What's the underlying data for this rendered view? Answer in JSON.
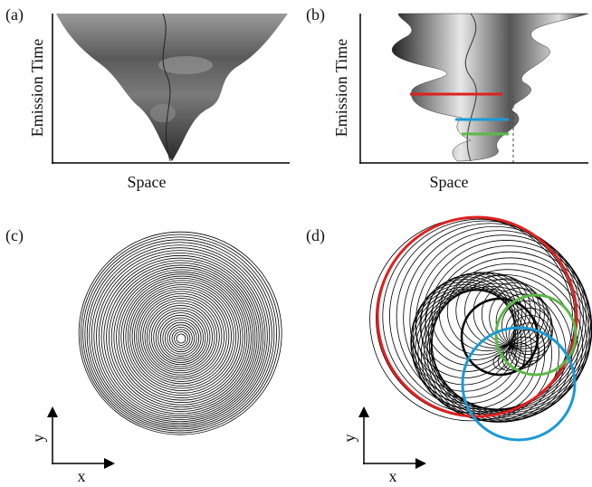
{
  "panels": [
    {
      "label": "(a)",
      "y_label": "Emission Time",
      "x_label": "Space"
    },
    {
      "label": "(b)",
      "y_label": "Emission Time",
      "x_label": "Space"
    },
    {
      "label": "(c)",
      "y_label": "y",
      "x_label": "x"
    },
    {
      "label": "(d)",
      "y_label": "y",
      "x_label": "x"
    }
  ]
}
